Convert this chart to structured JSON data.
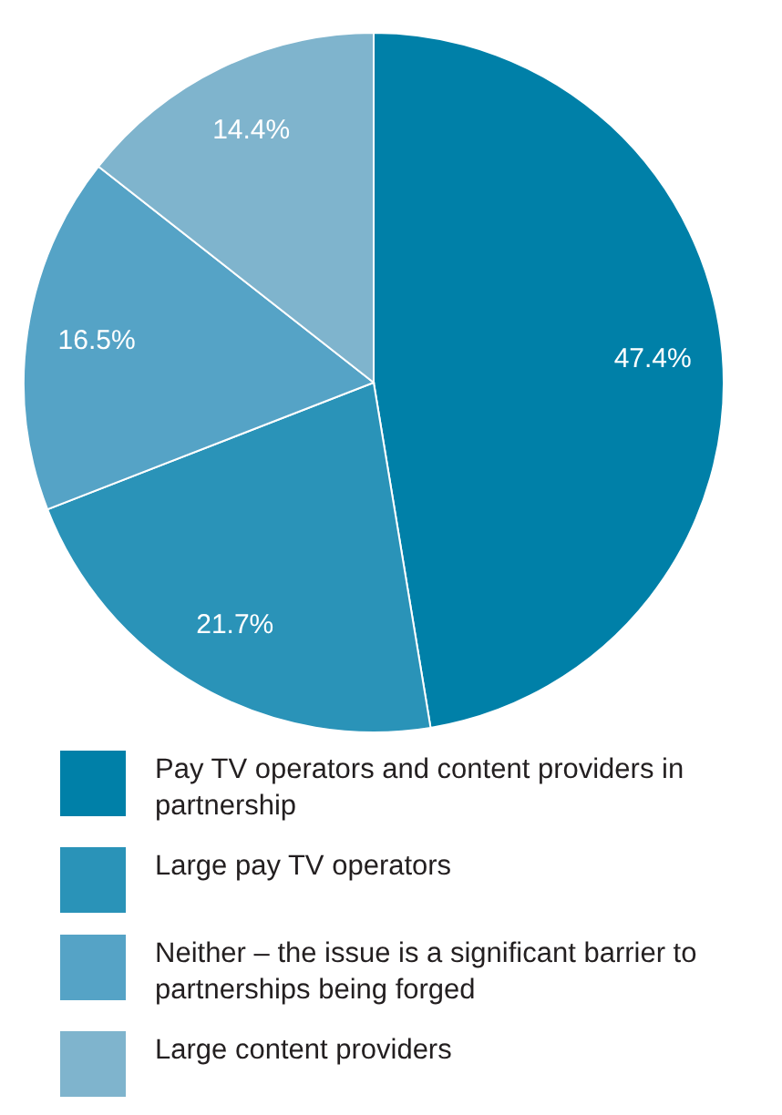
{
  "chart_data": {
    "type": "pie",
    "categories": [
      "Pay TV operators and content providers in partnership",
      "Large pay TV operators",
      "Neither – the issue is a significant barrier to partnerships being forged",
      "Large content providers"
    ],
    "values": [
      47.4,
      21.7,
      16.5,
      14.4
    ],
    "colors": [
      "#0080a8",
      "#2a93b8",
      "#55a3c6",
      "#7fb4cd"
    ],
    "value_labels": [
      "47.4%",
      "21.7%",
      "16.5%",
      "14.4%"
    ],
    "legend": "bottom"
  }
}
